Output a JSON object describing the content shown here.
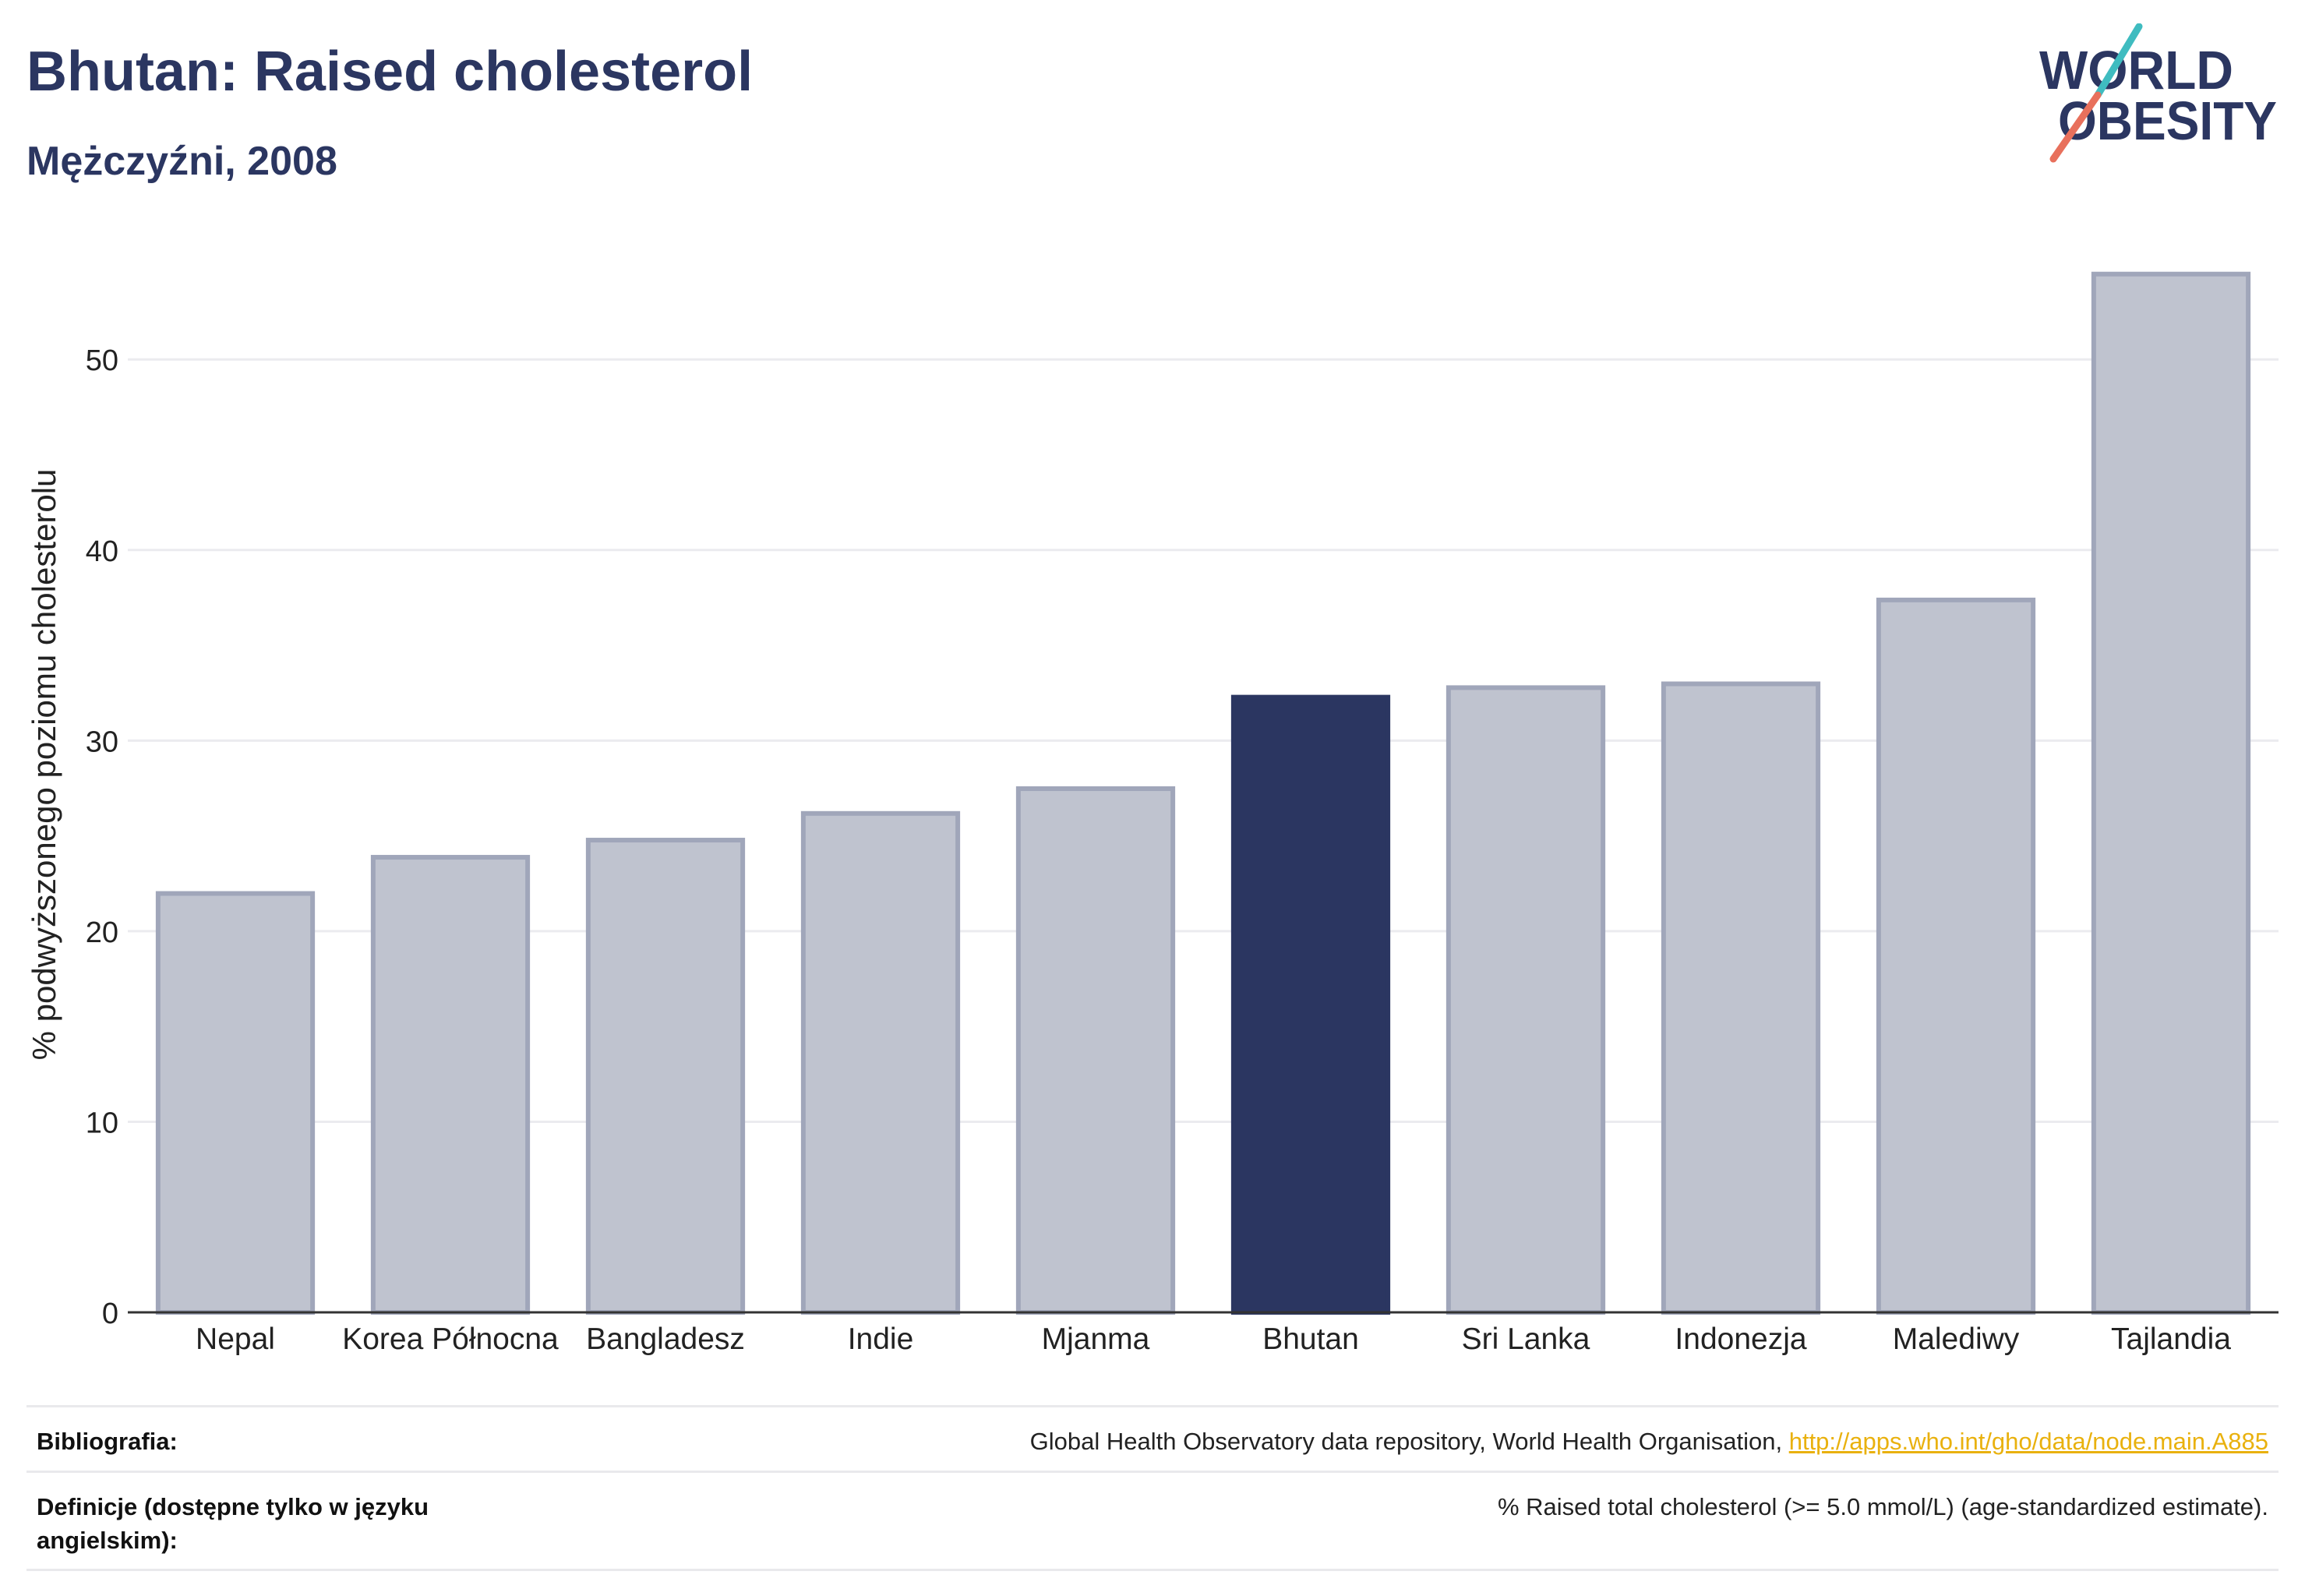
{
  "chart_data": {
    "type": "bar",
    "title": "Bhutan: Raised cholesterol",
    "subtitle": "Mężczyźni, 2008",
    "xlabel": "",
    "ylabel": "% podwyższonego poziomu cholesterolu",
    "categories": [
      "Nepal",
      "Korea Północna",
      "Bangladesz",
      "Indie",
      "Mjanma",
      "Bhutan",
      "Sri Lanka",
      "Indonezja",
      "Malediwy",
      "Tajlandia"
    ],
    "values": [
      22.1,
      24.0,
      24.9,
      26.3,
      27.6,
      32.4,
      32.9,
      33.1,
      37.5,
      54.6
    ],
    "highlight": "Bhutan",
    "ylim": [
      0,
      57
    ],
    "yticks": [
      0,
      10,
      20,
      30,
      40,
      50
    ],
    "grid": true
  },
  "logo": {
    "line1": "WORLD",
    "line2": "OBESITY"
  },
  "footer": {
    "bibliography_label": "Bibliografia:",
    "bibliography_text": "Global Health Observatory data repository, World Health Organisation, ",
    "bibliography_link": "http://apps.who.int/gho/data/node.main.A885",
    "definitions_label": "Definicje (dostępne tylko w języku angielskim):",
    "definitions_text": "% Raised total cholesterol (>= 5.0 mmol/L) (age-standardized estimate)."
  },
  "colors": {
    "accent": "#2b3661",
    "bar": "#bfc3cf",
    "bar_border": "#a0a6ba",
    "highlight": "#2b3661",
    "link": "#e9b10e",
    "logo_teal": "#3fbcc0",
    "logo_coral": "#e8705c"
  }
}
